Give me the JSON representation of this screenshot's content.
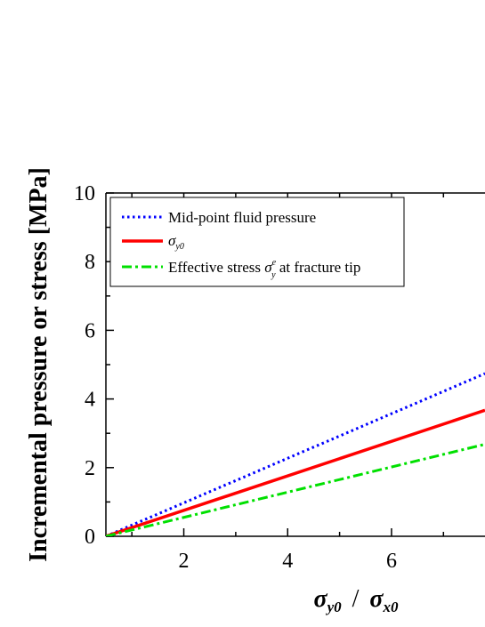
{
  "chart_data": {
    "type": "line",
    "title": "",
    "ylabel": "Incremental pressure or stress [MPa]",
    "xlabel": {
      "sym1": "σ",
      "sub1": "y0",
      "sep": "/",
      "sym2": "σ",
      "sub2": "x0"
    },
    "xlim": [
      0.5,
      7.8
    ],
    "ylim": [
      0,
      10
    ],
    "x_ticks": [
      2,
      4,
      6
    ],
    "y_ticks": [
      0,
      2,
      4,
      6,
      8,
      10
    ],
    "grid": false,
    "legend_position": "top-left",
    "series": [
      {
        "name": "Mid-point fluid pressure",
        "style": "dotted",
        "color": "#0000ff",
        "points": [
          [
            0.5,
            0
          ],
          [
            7.8,
            4.74
          ]
        ]
      },
      {
        "name_sym": "σ",
        "name_sub": "y0",
        "style": "solid",
        "color": "#ff0000",
        "points": [
          [
            0.5,
            0
          ],
          [
            7.8,
            3.67
          ]
        ]
      },
      {
        "name_pre": "Effective stress ",
        "name_sym": "σ",
        "name_sup": "e",
        "name_sub": "y",
        "name_post": " at fracture tip",
        "style": "dash-dot",
        "color": "#00e000",
        "points": [
          [
            0.5,
            0
          ],
          [
            7.8,
            2.68
          ]
        ]
      }
    ]
  }
}
